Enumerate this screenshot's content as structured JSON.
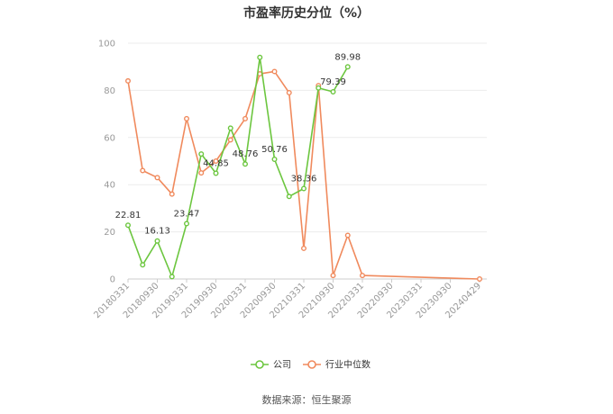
{
  "title": "市盈率历史分位（%）",
  "source": "数据来源：恒生聚源",
  "chart_data": {
    "type": "line",
    "title": "市盈率历史分位（%）",
    "ylim": [
      0,
      100
    ],
    "yticks": [
      0,
      20,
      40,
      60,
      80,
      100
    ],
    "x_labels": [
      "20180331",
      "20180930",
      "20190331",
      "20190930",
      "20200331",
      "20200930",
      "20210331",
      "20210930",
      "20220331",
      "20220930",
      "20230331",
      "20230930",
      "20240429"
    ],
    "grid": true,
    "legend_position": "bottom",
    "series": [
      {
        "name": "公司",
        "color": "#6cc63f",
        "x": [
          0,
          0.5,
          1,
          1.5,
          2,
          2.5,
          3,
          3.5,
          4,
          4.5,
          5,
          5.5,
          6,
          6.5,
          7,
          7.5
        ],
        "values": [
          22.81,
          6,
          16.13,
          1,
          23.47,
          53,
          44.85,
          64,
          48.76,
          94,
          50.76,
          35,
          38.36,
          81,
          79.39,
          89.98
        ],
        "labels": [
          "22.81",
          "",
          "16.13",
          "",
          "23.47",
          "",
          "44.85",
          "",
          "48.76",
          "",
          "50.76",
          "",
          "38.36",
          "",
          "79.39",
          "89.98"
        ]
      },
      {
        "name": "行业中位数",
        "color": "#f08a5d",
        "x": [
          0,
          0.5,
          1,
          1.5,
          2,
          2.5,
          3,
          3.5,
          4,
          4.5,
          5,
          5.5,
          6,
          6.5,
          7,
          7.5,
          8,
          12
        ],
        "values": [
          84,
          46,
          43,
          36,
          68,
          45,
          50,
          59,
          68,
          87,
          88,
          79,
          13,
          82,
          1.5,
          18.5,
          1.5,
          0
        ],
        "labels": []
      }
    ]
  }
}
